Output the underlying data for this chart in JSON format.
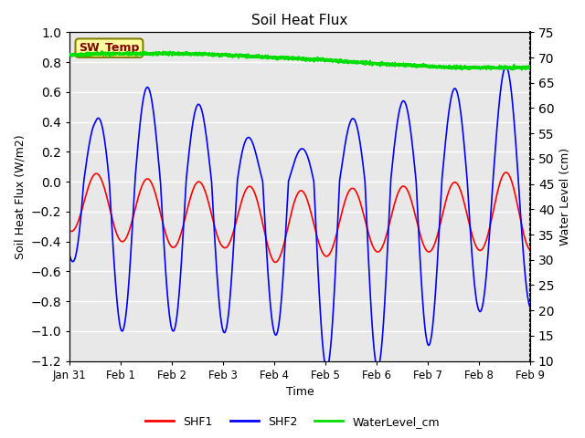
{
  "title": "Soil Heat Flux",
  "xlabel": "Time",
  "ylabel_left": "Soil Heat Flux (W/m2)",
  "ylabel_right": "Water Level (cm)",
  "ylim_left": [
    -1.2,
    1.0
  ],
  "ylim_right": [
    10,
    75
  ],
  "yticks_left": [
    -1.2,
    -1.0,
    -0.8,
    -0.6,
    -0.4,
    -0.2,
    0.0,
    0.2,
    0.4,
    0.6,
    0.8,
    1.0
  ],
  "yticks_right": [
    10,
    15,
    20,
    25,
    30,
    35,
    40,
    45,
    50,
    55,
    60,
    65,
    70,
    75
  ],
  "n_points": 3000,
  "shf1_color": "#ff0000",
  "shf2_color": "#0000ff",
  "water_color": "#00dd00",
  "bg_color": "#e8e8e8",
  "sw_temp_label": "SW_Temp",
  "sw_temp_bg": "#ffffa0",
  "sw_temp_border": "#808000",
  "sw_temp_text_color": "#800000",
  "legend_labels": [
    "SHF1",
    "SHF2",
    "WaterLevel_cm"
  ],
  "xticklabels": [
    "Jan 31",
    "Feb 1",
    "Feb 2",
    "Feb 3",
    "Feb 4",
    "Feb 5",
    "Feb 6",
    "Feb 7",
    "Feb 8",
    "Feb 9"
  ],
  "xticklabel_positions": [
    0,
    1,
    2,
    3,
    4,
    5,
    6,
    7,
    8,
    9
  ]
}
